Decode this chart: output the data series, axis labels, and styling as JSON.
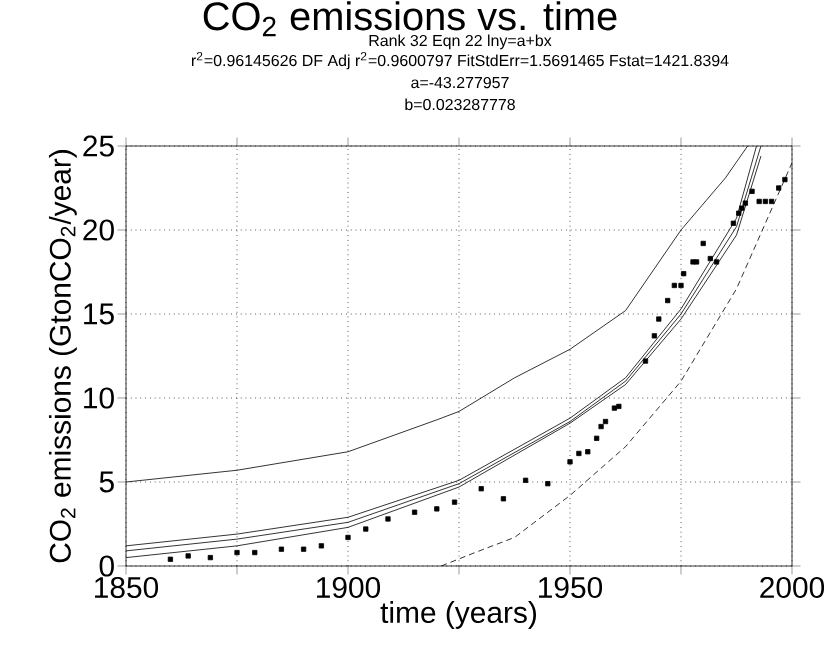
{
  "chart_data": {
    "type": "scatter",
    "title": "CO$_{2}$ emissions vs. time",
    "subtitle": "Rank 32  Eqn 22  lny=a+bx",
    "annotations": [
      "r$^{2}$=0.96145626  DF Adj r$^{2}$=0.9600797  FitStdErr=1.5691465  Fstat=1421.8394",
      "a=-43.277957",
      "b=0.023287778"
    ],
    "xlabel": "time   (years)",
    "ylabel": "CO$_{2}$ emissions  (GtonCO$_{2}$/year)",
    "xlim": [
      1850,
      2000
    ],
    "ylim": [
      0,
      25
    ],
    "xticks": [
      1850,
      {
        "value": 1875,
        "label": null
      },
      1900,
      {
        "value": 1925,
        "label": null
      },
      1950,
      {
        "value": 1975,
        "label": null
      },
      2000
    ],
    "yticks": [
      0,
      5,
      10,
      15,
      20,
      25
    ],
    "grid": true,
    "series": [
      {
        "marker": "square",
        "color": "#000000",
        "x": [
          1860,
          1864,
          1869,
          1875,
          1879,
          1885,
          1890,
          1894,
          1900,
          1904,
          1909,
          1915,
          1920,
          1924,
          1930,
          1935,
          1940,
          1945,
          1950,
          1952,
          1954,
          1956,
          1957,
          1958,
          1960,
          1961,
          1967,
          1969,
          1970,
          1972,
          1973.5,
          1975,
          1975.6,
          1977.7,
          1978.5,
          1980,
          1981.6,
          1983,
          1986.8,
          1988,
          1988.7,
          1989.5,
          1991,
          1992.6,
          1994,
          1995.4,
          1997,
          1998.4
        ],
        "values": [
          0.4,
          0.6,
          0.5,
          0.8,
          0.8,
          1.0,
          1.0,
          1.2,
          1.7,
          2.2,
          2.8,
          3.2,
          3.4,
          3.8,
          4.6,
          4.0,
          5.1,
          4.9,
          6.2,
          6.7,
          6.8,
          7.6,
          8.3,
          8.6,
          9.4,
          9.5,
          12.2,
          13.7,
          14.7,
          15.8,
          16.7,
          16.7,
          17.4,
          18.1,
          18.1,
          19.2,
          18.3,
          18.1,
          20.4,
          21.0,
          21.3,
          21.6,
          22.3,
          21.7,
          21.7,
          21.7,
          22.5,
          23.0
        ]
      },
      {
        "type": "line",
        "marker": "none",
        "line_style": "solid",
        "color": "#000000",
        "x": [
          1850,
          1875,
          1900,
          1925,
          1950,
          1962.5,
          1975,
          1987.5,
          1993
        ],
        "values": [
          0.9,
          1.6,
          2.6,
          4.9,
          8.6,
          11,
          15,
          20.2,
          25
        ]
      },
      {
        "type": "line",
        "marker": "none",
        "line_style": "solid",
        "color": "#000000",
        "x": [
          1850,
          1875,
          1900,
          1925,
          1950,
          1962.5,
          1975,
          1987.5,
          1992
        ],
        "values": [
          1.2,
          1.9,
          2.9,
          5.1,
          8.8,
          11.2,
          15.3,
          20.7,
          25
        ]
      },
      {
        "type": "line",
        "marker": "none",
        "line_style": "solid",
        "color": "#000000",
        "x": [
          1850,
          1875,
          1900,
          1925,
          1950,
          1962.5,
          1975,
          1987.5,
          1993
        ],
        "values": [
          0.5,
          1.2,
          2.3,
          4.7,
          8.5,
          10.8,
          14.7,
          19.7,
          24.4
        ]
      },
      {
        "type": "line",
        "marker": "none",
        "line_style": "solid",
        "color": "#000000",
        "x": [
          1850,
          1875,
          1900,
          1920,
          1925,
          1937.5,
          1950,
          1962.5,
          1975,
          1985,
          1990
        ],
        "values": [
          5.0,
          5.7,
          6.8,
          8.7,
          9.2,
          11.2,
          12.9,
          15.2,
          20.0,
          23.1,
          25
        ]
      },
      {
        "type": "line",
        "marker": "none",
        "line_style": "dashed",
        "color": "#000000",
        "x": [
          1921,
          1928.6,
          1937.5,
          1950,
          1962.5,
          1975,
          1987.5,
          1995,
          2000
        ],
        "values": [
          0,
          0.8,
          1.7,
          4.2,
          7.1,
          11,
          16.5,
          21,
          24
        ]
      }
    ]
  }
}
